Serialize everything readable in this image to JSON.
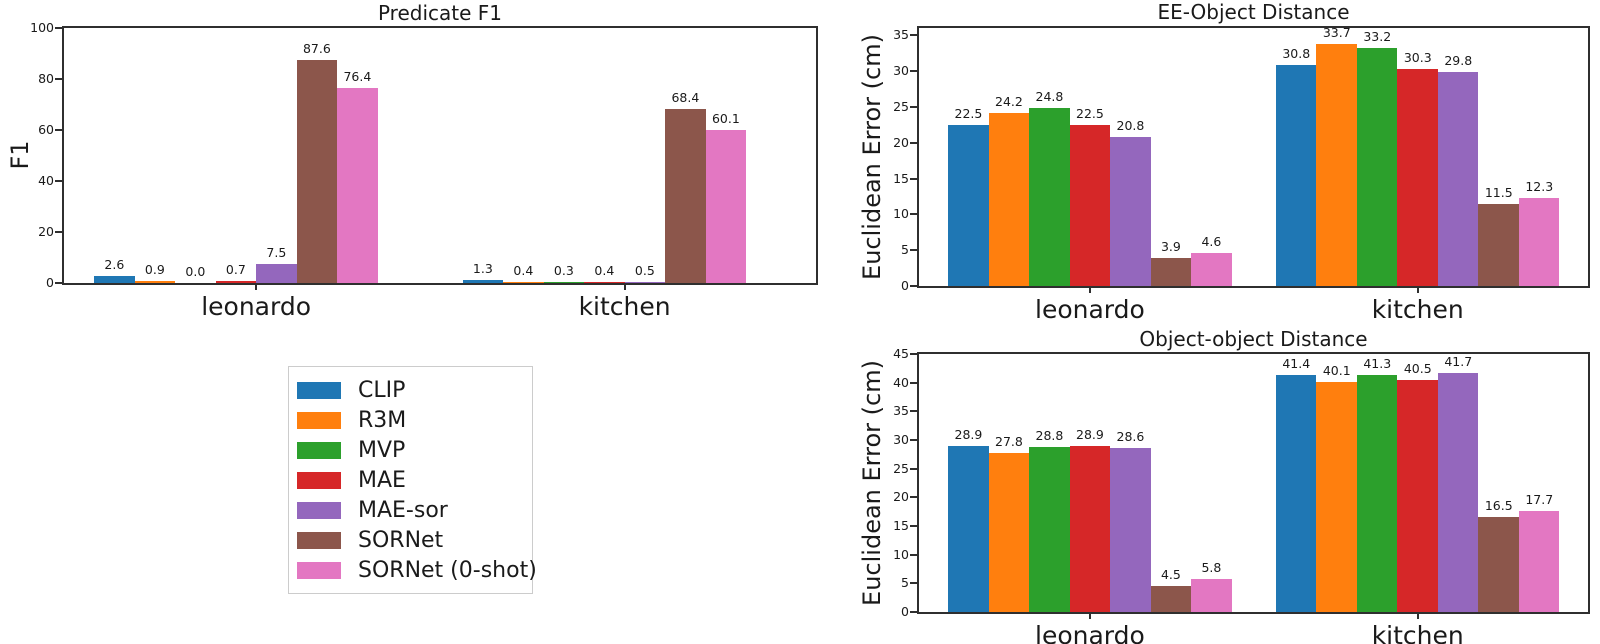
{
  "figure": {
    "background": "#ffffff",
    "text_color": "#1a1a1a",
    "axis_color": "#2f2f2f"
  },
  "legend": {
    "items": [
      {
        "label": "CLIP",
        "color": "#1f77b4"
      },
      {
        "label": "R3M",
        "color": "#ff7f0e"
      },
      {
        "label": "MVP",
        "color": "#2ca02c"
      },
      {
        "label": "MAE",
        "color": "#d62728"
      },
      {
        "label": "MAE-sor",
        "color": "#9467bd"
      },
      {
        "label": "SORNet",
        "color": "#8c564b"
      },
      {
        "label": "SORNet (0-shot)",
        "color": "#e377c2"
      }
    ]
  },
  "chart_data": [
    {
      "id": "predicate-f1",
      "type": "bar",
      "title": "Predicate F1",
      "xlabel": "",
      "ylabel": "F1",
      "categories": [
        "leonardo",
        "kitchen"
      ],
      "ylim": [
        0,
        100
      ],
      "yticks": [
        0,
        20,
        40,
        60,
        80,
        100
      ],
      "grid": false,
      "value_labels": true,
      "legend_position": "below-left",
      "series": [
        {
          "name": "CLIP",
          "color": "#1f77b4",
          "values": [
            2.6,
            1.3
          ]
        },
        {
          "name": "R3M",
          "color": "#ff7f0e",
          "values": [
            0.9,
            0.4
          ]
        },
        {
          "name": "MVP",
          "color": "#2ca02c",
          "values": [
            0.0,
            0.3
          ]
        },
        {
          "name": "MAE",
          "color": "#d62728",
          "values": [
            0.7,
            0.4
          ]
        },
        {
          "name": "MAE-sor",
          "color": "#9467bd",
          "values": [
            7.5,
            0.5
          ]
        },
        {
          "name": "SORNet",
          "color": "#8c564b",
          "values": [
            87.6,
            68.4
          ]
        },
        {
          "name": "SORNet (0-shot)",
          "color": "#e377c2",
          "values": [
            76.4,
            60.1
          ]
        }
      ]
    },
    {
      "id": "ee-object-distance",
      "type": "bar",
      "title": "EE-Object Distance",
      "xlabel": "",
      "ylabel": "Euclidean Error (cm)",
      "categories": [
        "leonardo",
        "kitchen"
      ],
      "ylim": [
        0,
        36
      ],
      "yticks": [
        0,
        5,
        10,
        15,
        20,
        25,
        30,
        35
      ],
      "grid": false,
      "value_labels": true,
      "legend_position": "none",
      "series": [
        {
          "name": "CLIP",
          "color": "#1f77b4",
          "values": [
            22.5,
            30.8
          ]
        },
        {
          "name": "R3M",
          "color": "#ff7f0e",
          "values": [
            24.2,
            33.7
          ]
        },
        {
          "name": "MVP",
          "color": "#2ca02c",
          "values": [
            24.8,
            33.2
          ]
        },
        {
          "name": "MAE",
          "color": "#d62728",
          "values": [
            22.5,
            30.3
          ]
        },
        {
          "name": "MAE-sor",
          "color": "#9467bd",
          "values": [
            20.8,
            29.8
          ]
        },
        {
          "name": "SORNet",
          "color": "#8c564b",
          "values": [
            3.9,
            11.5
          ]
        },
        {
          "name": "SORNet (0-shot)",
          "color": "#e377c2",
          "values": [
            4.6,
            12.3
          ]
        }
      ]
    },
    {
      "id": "object-object-distance",
      "type": "bar",
      "title": "Object-object Distance",
      "xlabel": "",
      "ylabel": "Euclidean Error (cm)",
      "categories": [
        "leonardo",
        "kitchen"
      ],
      "ylim": [
        0,
        45
      ],
      "yticks": [
        0,
        5,
        10,
        15,
        20,
        25,
        30,
        35,
        40,
        45
      ],
      "grid": false,
      "value_labels": true,
      "legend_position": "none",
      "series": [
        {
          "name": "CLIP",
          "color": "#1f77b4",
          "values": [
            28.9,
            41.4
          ]
        },
        {
          "name": "R3M",
          "color": "#ff7f0e",
          "values": [
            27.8,
            40.1
          ]
        },
        {
          "name": "MVP",
          "color": "#2ca02c",
          "values": [
            28.8,
            41.3
          ]
        },
        {
          "name": "MAE",
          "color": "#d62728",
          "values": [
            28.9,
            40.5
          ]
        },
        {
          "name": "MAE-sor",
          "color": "#9467bd",
          "values": [
            28.6,
            41.7
          ]
        },
        {
          "name": "SORNet",
          "color": "#8c564b",
          "values": [
            4.5,
            16.5
          ]
        },
        {
          "name": "SORNet (0-shot)",
          "color": "#e377c2",
          "values": [
            5.8,
            17.7
          ]
        }
      ]
    }
  ]
}
